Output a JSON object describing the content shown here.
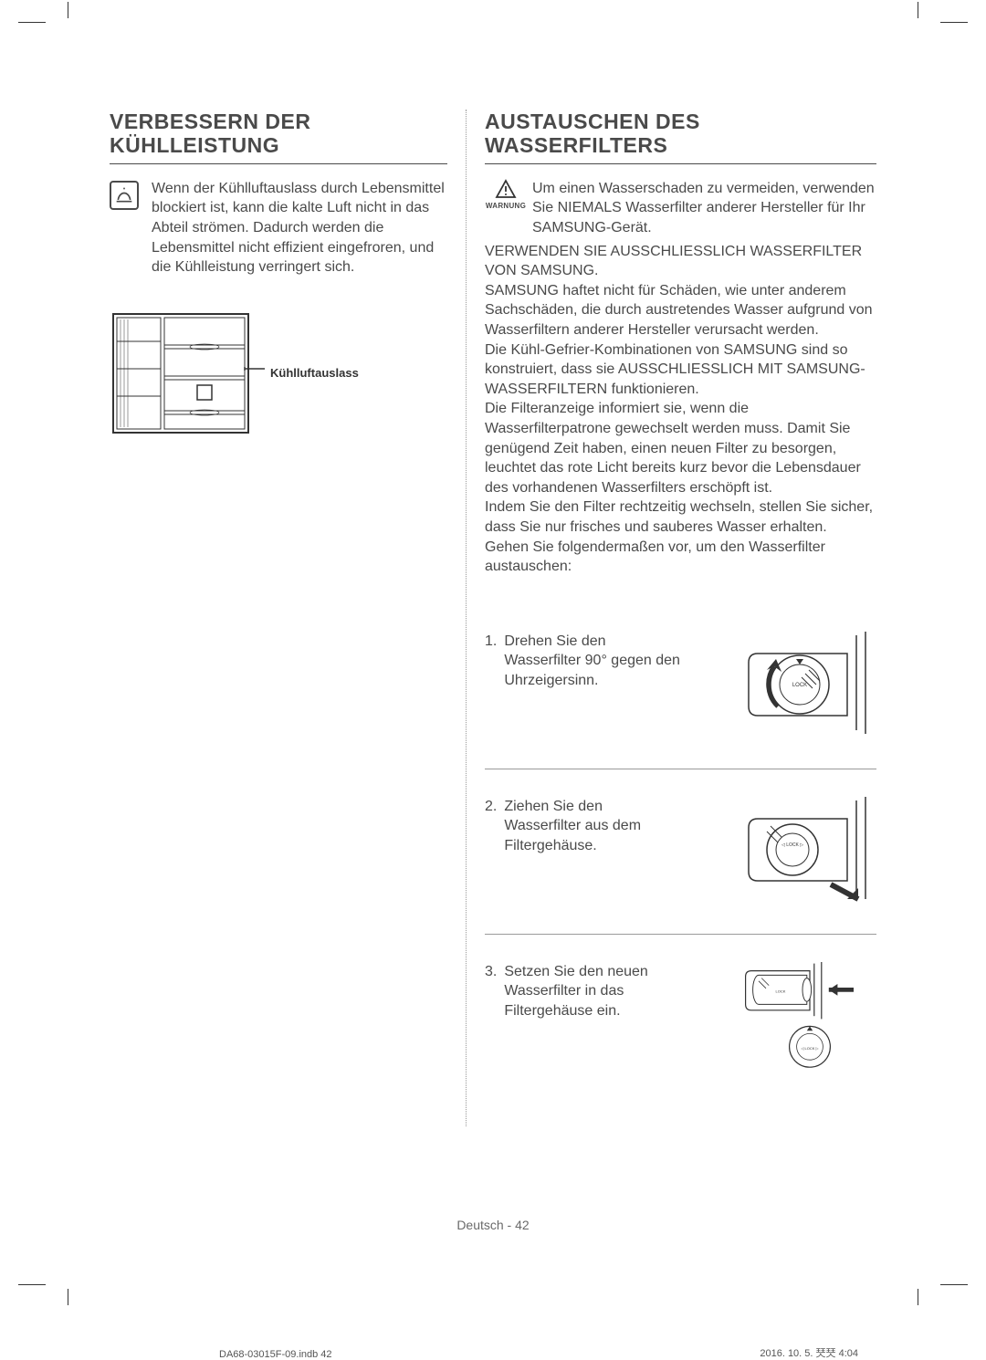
{
  "left": {
    "heading": "VERBESSERN DER KÜHLLEISTUNG",
    "note_text": "Wenn der Kühlluftauslass durch Lebensmittel blockiert ist, kann die kalte Luft nicht in das Abteil strömen. Dadurch werden die Lebensmittel nicht effizient eingefroren, und die Kühlleistung verringert sich.",
    "callout": "Kühlluftauslass"
  },
  "right": {
    "heading": "AUSTAUSCHEN DES WASSERFILTERS",
    "warn_label": "WARNUNG",
    "warn_text": "Um einen Wasserschaden zu vermeiden, verwenden Sie NIEMALS Wasserfilter anderer Hersteller für Ihr SAMSUNG-Gerät.",
    "body": "VERWENDEN SIE AUSSCHLIESSLICH WASSERFILTER VON SAMSUNG.\nSAMSUNG haftet nicht für Schäden, wie unter anderem Sachschäden, die durch austretendes Wasser aufgrund von Wasserfiltern anderer Hersteller verursacht werden.\nDie Kühl-Gefrier-Kombinationen von SAMSUNG sind so konstruiert, dass sie AUSSCHLIESSLICH MIT SAMSUNG-WASSERFILTERN funktionieren.\nDie Filteranzeige informiert sie, wenn die Wasserfilterpatrone gewechselt werden muss. Damit Sie genügend Zeit haben, einen neuen Filter zu besorgen, leuchtet das rote Licht bereits kurz bevor die Lebensdauer des vorhandenen Wasserfilters erschöpft ist.\nIndem Sie den Filter rechtzeitig wechseln, stellen Sie sicher, dass Sie nur frisches und sauberes Wasser erhalten.\nGehen Sie folgendermaßen vor, um den Wasserfilter austauschen:",
    "steps": [
      {
        "num": "1.",
        "text": "Drehen Sie den Wasserfilter 90° gegen den Uhrzeigersinn."
      },
      {
        "num": "2.",
        "text": "Ziehen Sie den Wasserfilter aus dem Filtergehäuse."
      },
      {
        "num": "3.",
        "text": "Setzen Sie den neuen Wasserfilter in das Filtergehäuse ein."
      }
    ]
  },
  "footer": {
    "lang_page": "Deutsch - 42",
    "doc_id": "DA68-03015F-09.indb   42",
    "timestamp": "2016. 10. 5.   珡珡 4:04"
  },
  "colors": {
    "text": "#4a4a4a",
    "rule": "#4a4a4a",
    "dotted": "#9a9a9a",
    "bg": "#ffffff"
  }
}
